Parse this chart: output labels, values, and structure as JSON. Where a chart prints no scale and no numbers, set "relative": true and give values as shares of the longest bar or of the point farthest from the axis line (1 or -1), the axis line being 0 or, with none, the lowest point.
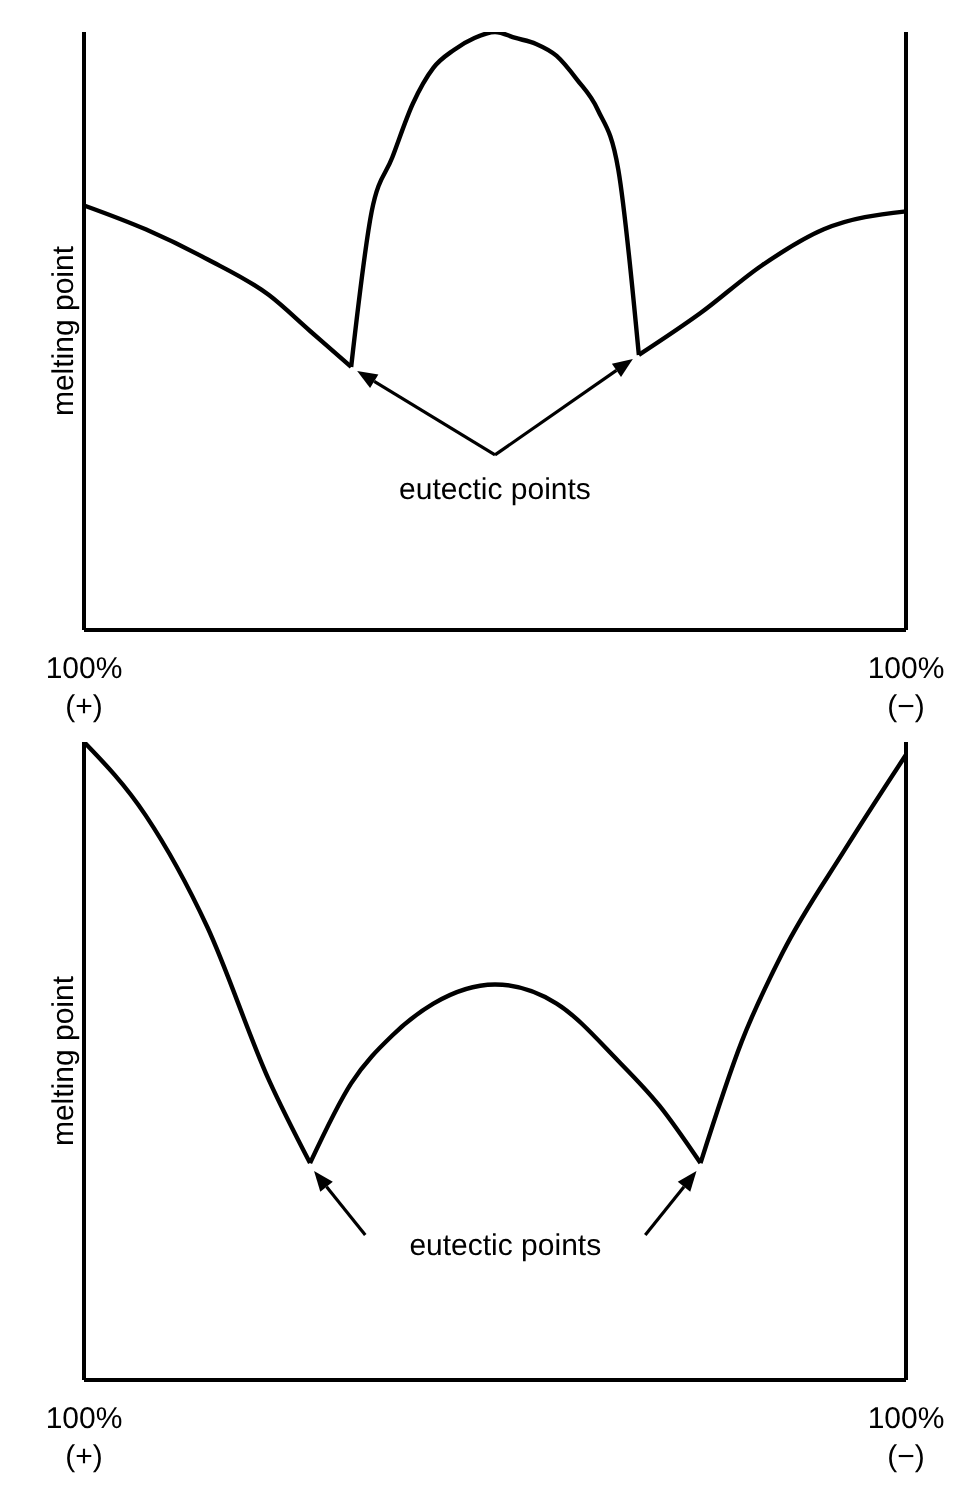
{
  "chart_data": [
    {
      "type": "line",
      "ylabel": "melting point",
      "relative": true,
      "marker": "none",
      "annotations": [
        "eutectic points"
      ],
      "categories": [
        "100%\n(+)",
        null,
        null,
        null,
        null,
        null,
        null,
        null,
        null,
        null,
        null,
        null,
        null,
        null,
        null,
        null,
        null,
        null,
        null,
        null,
        null,
        null,
        null,
        null,
        null,
        null,
        null,
        null,
        null,
        null,
        null,
        null,
        null,
        null,
        null,
        null,
        null,
        null,
        null,
        null,
        "100%\n(−)"
      ],
      "series": [
        {
          "color": "#000000",
          "values": [
            0.71,
            null,
            null,
            0.67,
            null,
            null,
            0.62,
            null,
            null,
            0.56,
            null,
            0.5,
            null,
            0.44,
            null,
            null,
            null,
            null,
            null,
            null,
            null,
            null,
            null,
            null,
            null,
            null,
            null,
            null,
            null,
            null,
            null,
            null,
            null,
            null,
            null,
            null,
            null,
            null,
            null,
            null,
            null
          ]
        },
        {
          "color": "#000000",
          "values": [
            null,
            null,
            null,
            null,
            null,
            null,
            null,
            null,
            null,
            null,
            null,
            null,
            null,
            0.44,
            0.7,
            0.79,
            0.88,
            0.94,
            0.97,
            0.99,
            1,
            0.99,
            0.98,
            0.96,
            0.92,
            0.87,
            0.77,
            0.46,
            null,
            null,
            null,
            null,
            null,
            null,
            null,
            null,
            null,
            null,
            null,
            null,
            null
          ]
        },
        {
          "color": "#000000",
          "values": [
            null,
            null,
            null,
            null,
            null,
            null,
            null,
            null,
            null,
            null,
            null,
            null,
            null,
            null,
            null,
            null,
            null,
            null,
            null,
            null,
            null,
            null,
            null,
            null,
            null,
            null,
            null,
            0.46,
            null,
            null,
            0.53,
            null,
            null,
            0.61,
            null,
            null,
            0.67,
            null,
            null,
            null,
            0.7
          ]
        }
      ]
    },
    {
      "type": "line",
      "ylabel": "melting point",
      "relative": true,
      "marker": "none",
      "annotations": [
        "eutectic points"
      ],
      "categories": [
        "100%\n(+)",
        null,
        null,
        null,
        null,
        null,
        null,
        null,
        null,
        null,
        null,
        null,
        null,
        null,
        null,
        null,
        null,
        null,
        null,
        null,
        null,
        null,
        null,
        null,
        null,
        null,
        null,
        null,
        null,
        null,
        null,
        null,
        null,
        null,
        null,
        null,
        null,
        null,
        null,
        null,
        "100%\n(−)"
      ],
      "series": [
        {
          "color": "#000000",
          "values": [
            1,
            null,
            null,
            0.885,
            null,
            null,
            0.71,
            null,
            null,
            0.47,
            null,
            0.34,
            null,
            null,
            null,
            null,
            null,
            null,
            null,
            null,
            null,
            null,
            null,
            null,
            null,
            null,
            null,
            null,
            null,
            null,
            null,
            null,
            null,
            null,
            null,
            null,
            null,
            null,
            null,
            null,
            null
          ]
        },
        {
          "color": "#000000",
          "values": [
            null,
            null,
            null,
            null,
            null,
            null,
            null,
            null,
            null,
            null,
            null,
            0.34,
            null,
            0.465,
            null,
            0.54,
            null,
            0.59,
            null,
            null,
            0.62,
            null,
            null,
            0.59,
            null,
            null,
            0.5,
            null,
            0.43,
            null,
            0.34,
            null,
            null,
            null,
            null,
            null,
            null,
            null,
            null,
            null,
            null
          ]
        },
        {
          "color": "#000000",
          "values": [
            null,
            null,
            null,
            null,
            null,
            null,
            null,
            null,
            null,
            null,
            null,
            null,
            null,
            null,
            null,
            null,
            null,
            null,
            null,
            null,
            null,
            null,
            null,
            null,
            null,
            null,
            null,
            null,
            null,
            null,
            0.34,
            null,
            0.53,
            null,
            0.67,
            null,
            null,
            0.83,
            null,
            null,
            0.98
          ]
        }
      ]
    }
  ]
}
